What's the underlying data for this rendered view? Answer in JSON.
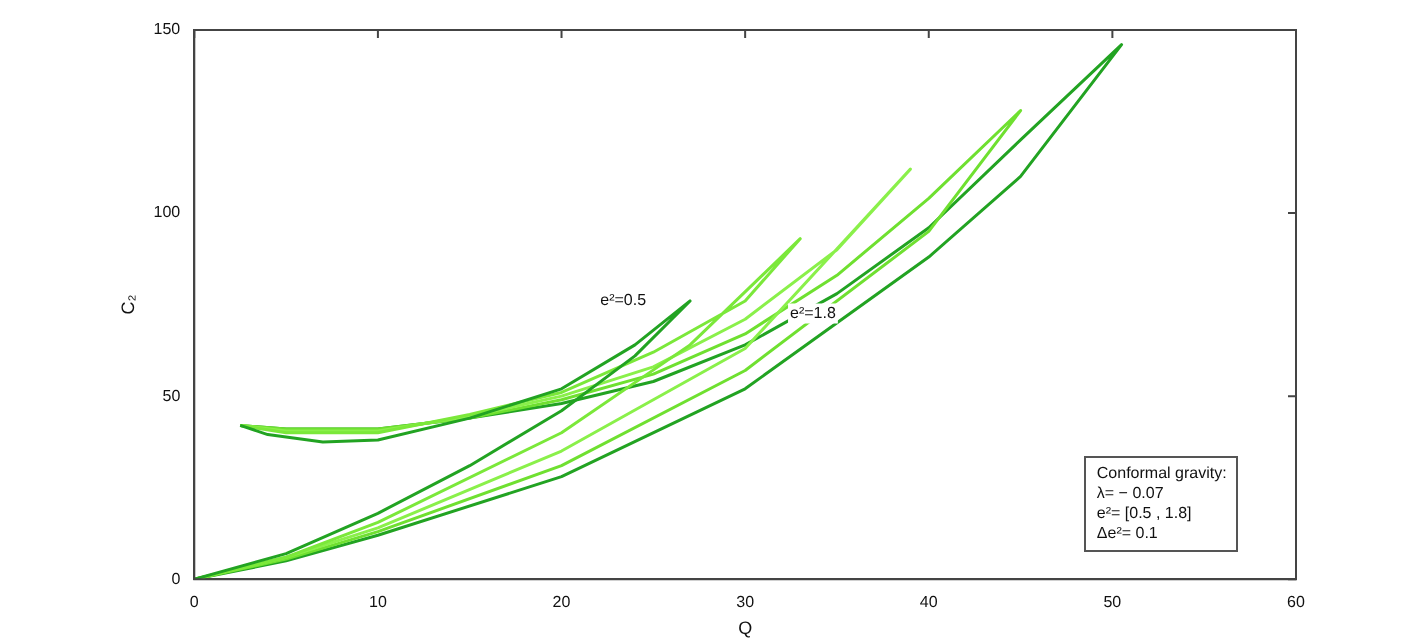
{
  "chart_data": {
    "type": "line",
    "xlabel": "Q",
    "ylabel": "C₂",
    "xlim": [
      0,
      60
    ],
    "xticks": [
      0,
      10,
      20,
      30,
      40,
      50,
      60
    ],
    "ylim": [
      0,
      150
    ],
    "yticks": [
      0,
      50,
      100,
      150
    ],
    "grid": false,
    "legend": false,
    "marker": "none",
    "line_style": "solid",
    "series": [
      {
        "color": "#22a322",
        "x": [
          0,
          5,
          10,
          15,
          20,
          24,
          27,
          24,
          20,
          15,
          10,
          7,
          4,
          2.5
        ],
        "values": [
          0,
          7,
          18,
          31,
          46,
          61,
          76,
          64,
          52,
          44,
          38,
          37.5,
          39.5,
          42
        ]
      },
      {
        "color": "#7be83a",
        "x": [
          0,
          5,
          10,
          20,
          27,
          33,
          30,
          25,
          20,
          15,
          10,
          5,
          2.5
        ],
        "values": [
          0,
          6,
          15.5,
          40,
          64,
          93,
          76,
          62,
          51,
          45,
          40,
          40,
          42
        ]
      },
      {
        "color": "#8af04a",
        "x": [
          0,
          5,
          10,
          20,
          30,
          39,
          35,
          30,
          25,
          20,
          15,
          10,
          5,
          2.5
        ],
        "values": [
          0,
          6,
          14,
          35,
          63,
          112,
          90,
          71,
          58,
          50,
          44.5,
          40.5,
          40.5,
          42
        ]
      },
      {
        "color": "#6fe030",
        "x": [
          0,
          5,
          10,
          20,
          30,
          40,
          45,
          40,
          35,
          30,
          25,
          20,
          15,
          10,
          5,
          2.5
        ],
        "values": [
          0,
          5.5,
          13,
          31,
          57,
          95,
          128,
          104,
          83,
          67,
          56,
          49,
          44,
          41,
          41,
          42
        ]
      },
      {
        "color": "#22a322",
        "x": [
          0,
          5,
          10,
          20,
          30,
          40,
          45,
          50.5,
          45,
          40,
          35,
          30,
          25,
          20,
          15,
          10,
          5,
          2.5
        ],
        "values": [
          0,
          5,
          12,
          28,
          52,
          88,
          110,
          146,
          120,
          96,
          78,
          64,
          54,
          48,
          44,
          41,
          41,
          42
        ]
      }
    ],
    "annotations": [
      {
        "text": "e²=0.5",
        "x": 27,
        "y": 76
      },
      {
        "text": "e²=1.8",
        "x": 35,
        "y": 78
      },
      "Conformal gravity:",
      "λ= − 0.07",
      "e²= [0.5 , 1.8]",
      "Δe²= 0.1"
    ]
  }
}
